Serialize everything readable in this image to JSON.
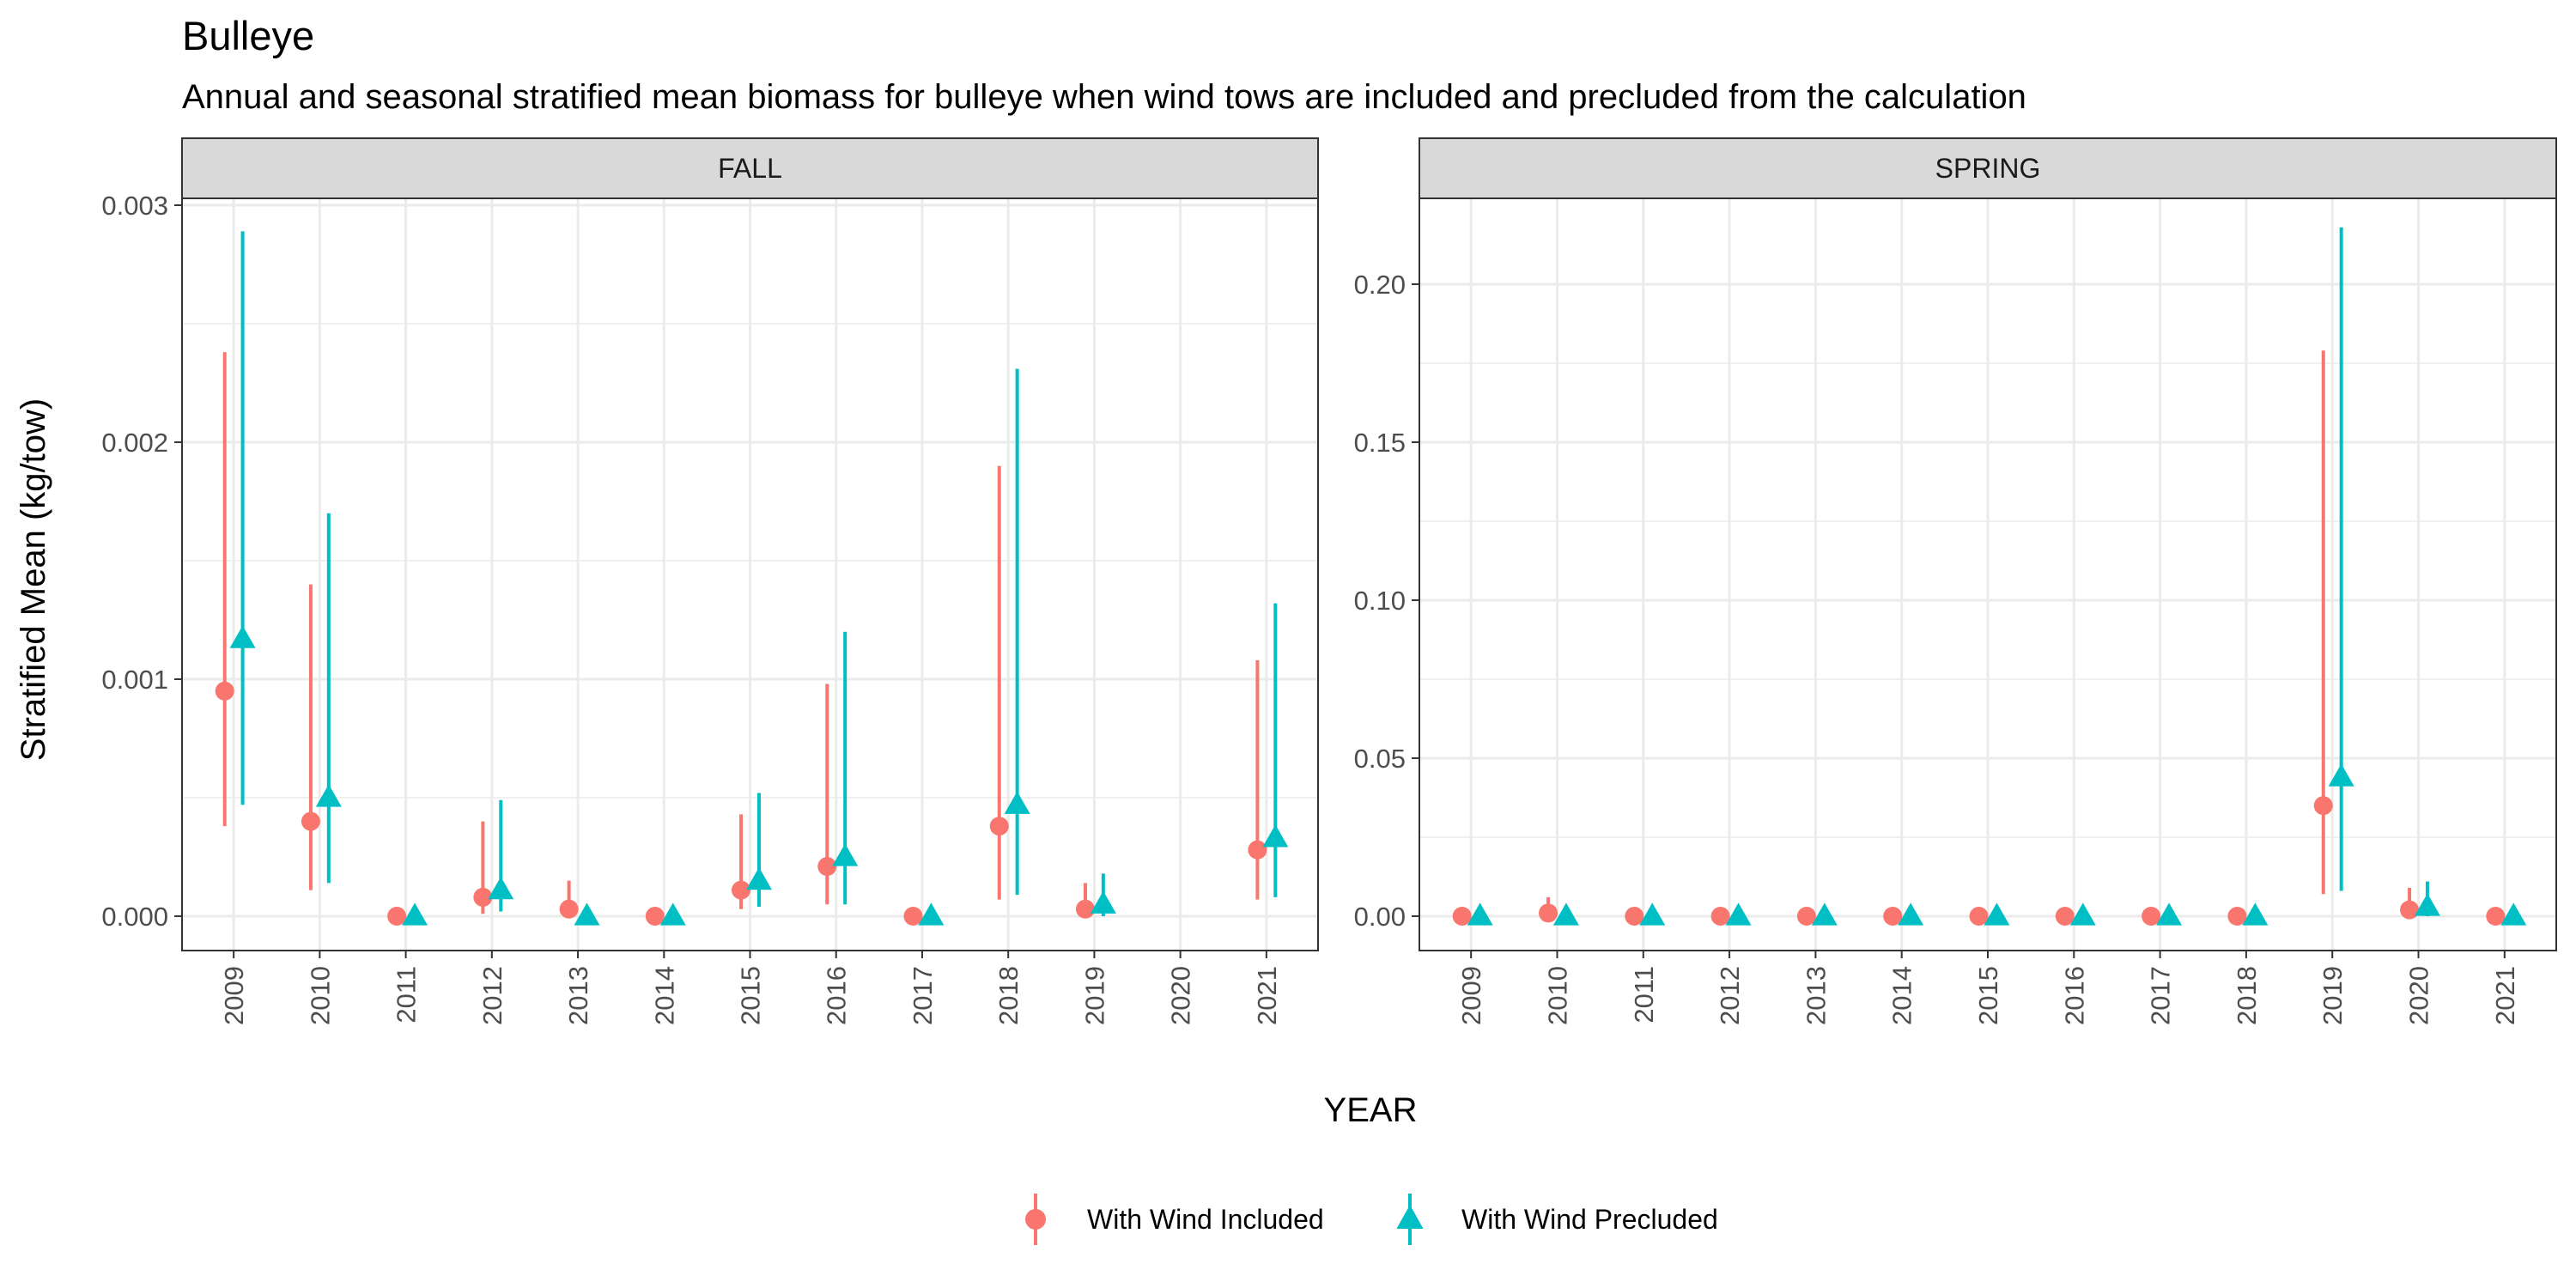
{
  "title": "Bulleye",
  "subtitle": "Annual and seasonal stratified mean biomass for bulleye when wind tows are included and precluded from the calculation",
  "xlabel": "YEAR",
  "ylabel": "Stratified Mean (kg/tow)",
  "colors": {
    "included": "#F8766D",
    "precluded": "#00BFC4",
    "strip_bg": "#d9d9d9",
    "grid": "#ebebeb",
    "border": "#333333"
  },
  "legend": {
    "items": [
      {
        "label": "With Wind Included",
        "shape": "circle",
        "color": "#F8766D"
      },
      {
        "label": "With Wind Precluded",
        "shape": "triangle",
        "color": "#00BFC4"
      }
    ],
    "position": "bottom"
  },
  "chart_data": [
    {
      "type": "scatter",
      "panel": "FALL",
      "categories": [
        "2009",
        "2010",
        "2011",
        "2012",
        "2013",
        "2014",
        "2015",
        "2016",
        "2017",
        "2018",
        "2019",
        "2020",
        "2021"
      ],
      "ylim": [
        0,
        0.003
      ],
      "ticks": [
        0.0,
        0.001,
        0.002,
        0.003
      ],
      "tick_labels": [
        "0.000",
        "0.001",
        "0.002",
        "0.003"
      ],
      "grid": true,
      "series": [
        {
          "name": "With Wind Included",
          "values": [
            0.00095,
            0.0004,
            0.0,
            8e-05,
            3e-05,
            0.0,
            0.00011,
            0.00021,
            0.0,
            0.00038,
            3e-05,
            null,
            0.00028
          ],
          "lower": [
            0.00038,
            0.00011,
            0.0,
            1e-05,
            0.0,
            0.0,
            3e-05,
            5e-05,
            0.0,
            7e-05,
            0.0,
            null,
            7e-05
          ],
          "upper": [
            0.00238,
            0.0014,
            0.0,
            0.0004,
            0.00015,
            0.0,
            0.00043,
            0.00098,
            0.0,
            0.0019,
            0.00014,
            null,
            0.00108
          ]
        },
        {
          "name": "With Wind Precluded",
          "values": [
            0.00117,
            0.0005,
            0.0,
            0.00011,
            0.0,
            0.0,
            0.00015,
            0.00025,
            0.0,
            0.00047,
            5e-05,
            null,
            0.00033
          ],
          "lower": [
            0.00047,
            0.00014,
            0.0,
            2e-05,
            0.0,
            0.0,
            4e-05,
            5e-05,
            0.0,
            9e-05,
            0.0,
            null,
            8e-05
          ],
          "upper": [
            0.00289,
            0.0017,
            0.0,
            0.00049,
            0.0,
            0.0,
            0.00052,
            0.0012,
            0.0,
            0.00231,
            0.00018,
            null,
            0.00132
          ]
        }
      ]
    },
    {
      "type": "scatter",
      "panel": "SPRING",
      "categories": [
        "2009",
        "2010",
        "2011",
        "2012",
        "2013",
        "2014",
        "2015",
        "2016",
        "2017",
        "2018",
        "2019",
        "2020",
        "2021"
      ],
      "ylim": [
        0,
        0.225
      ],
      "ticks": [
        0.0,
        0.05,
        0.1,
        0.15,
        0.2
      ],
      "tick_labels": [
        "0.00",
        "0.05",
        "0.10",
        "0.15",
        "0.20"
      ],
      "grid": true,
      "series": [
        {
          "name": "With Wind Included",
          "values": [
            0.0,
            0.001,
            0.0,
            0.0,
            0.0,
            0.0,
            0.0,
            0.0,
            0.0,
            0.0,
            0.035,
            0.002,
            0.0
          ],
          "lower": [
            0.0,
            0.0,
            0.0,
            0.0,
            0.0,
            0.0,
            0.0,
            0.0,
            0.0,
            0.0,
            0.007,
            0.0,
            0.0
          ],
          "upper": [
            0.0,
            0.006,
            0.0,
            0.0,
            0.0,
            0.0,
            0.0,
            0.0,
            0.0,
            0.0,
            0.179,
            0.009,
            0.0
          ]
        },
        {
          "name": "With Wind Precluded",
          "values": [
            0.0,
            0.0,
            0.0,
            0.0,
            0.0,
            0.0,
            0.0,
            0.0,
            0.0,
            0.0,
            0.044,
            0.003,
            0.0
          ],
          "lower": [
            0.0,
            0.0,
            0.0,
            0.0,
            0.0,
            0.0,
            0.0,
            0.0,
            0.0,
            0.0,
            0.008,
            0.0,
            0.0
          ],
          "upper": [
            0.0,
            0.0,
            0.0,
            0.0,
            0.0,
            0.0,
            0.0,
            0.0,
            0.0,
            0.0,
            0.218,
            0.011,
            0.0
          ]
        }
      ]
    }
  ]
}
